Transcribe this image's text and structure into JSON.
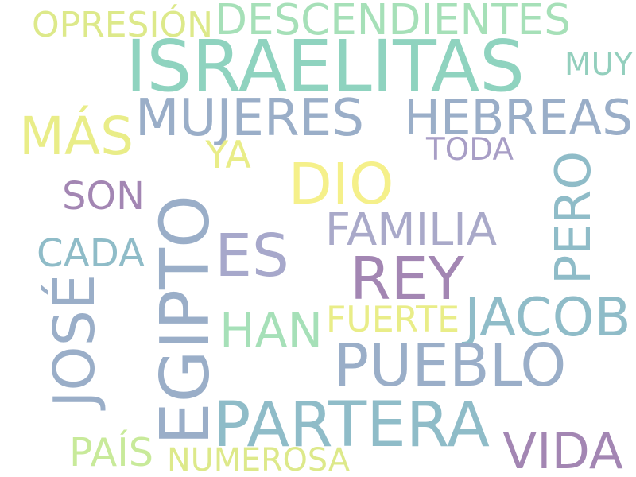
{
  "cloud": {
    "background": "#ffffff",
    "words": [
      {
        "text": "ISRAELITAS",
        "color": "#8fd3bf",
        "vertical": false
      },
      {
        "text": "DESCENDIENTES",
        "color": "#a6e0b8",
        "vertical": false
      },
      {
        "text": "OPRESIÓN",
        "color": "#dde98a",
        "vertical": false
      },
      {
        "text": "MUY",
        "color": "#93cfbd",
        "vertical": false
      },
      {
        "text": "MUJERES",
        "color": "#9aaec8",
        "vertical": false
      },
      {
        "text": "HEBREAS",
        "color": "#9aaec8",
        "vertical": false
      },
      {
        "text": "MÁS",
        "color": "#e9ed88",
        "vertical": false
      },
      {
        "text": "YA",
        "color": "#e9ed88",
        "vertical": false
      },
      {
        "text": "TODA",
        "color": "#a89ec6",
        "vertical": false
      },
      {
        "text": "DIO",
        "color": "#f5f08a",
        "vertical": false
      },
      {
        "text": "SON",
        "color": "#a386b3",
        "vertical": false
      },
      {
        "text": "PERO",
        "color": "#8fbcc8",
        "vertical": true
      },
      {
        "text": "EGIPTO",
        "color": "#9aaec8",
        "vertical": true
      },
      {
        "text": "FAMILIA",
        "color": "#a9a9c9",
        "vertical": false
      },
      {
        "text": "ES",
        "color": "#a7a8cb",
        "vertical": false
      },
      {
        "text": "CADA",
        "color": "#8fbcc8",
        "vertical": false
      },
      {
        "text": "REY",
        "color": "#a386b3",
        "vertical": false
      },
      {
        "text": "JOSÉ",
        "color": "#9aaec8",
        "vertical": true
      },
      {
        "text": "JACOB",
        "color": "#8fbcc8",
        "vertical": false
      },
      {
        "text": "HAN",
        "color": "#a6e0b8",
        "vertical": false
      },
      {
        "text": "FUERTE",
        "color": "#e9ed88",
        "vertical": false
      },
      {
        "text": "PUEBLO",
        "color": "#9aaec8",
        "vertical": false
      },
      {
        "text": "PARTERA",
        "color": "#8fbcc8",
        "vertical": false
      },
      {
        "text": "VIDA",
        "color": "#a386b3",
        "vertical": false
      },
      {
        "text": "PAÍS",
        "color": "#c8ea9a",
        "vertical": false
      },
      {
        "text": "NUMEROSA",
        "color": "#dde98a",
        "vertical": false
      }
    ]
  }
}
